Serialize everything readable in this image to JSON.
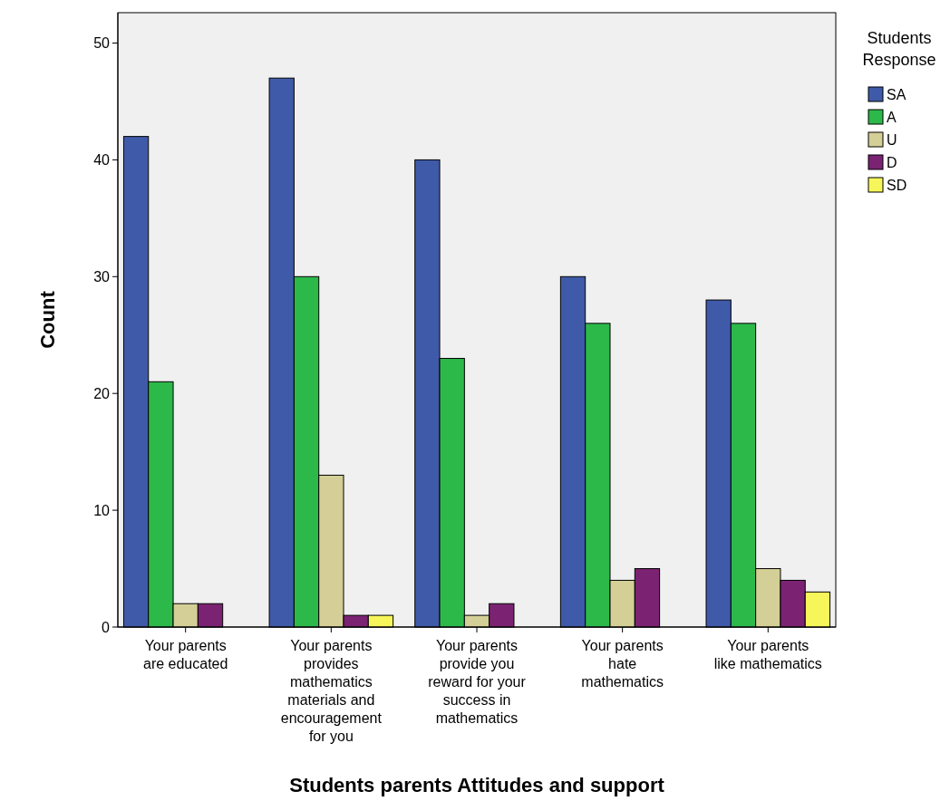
{
  "chart_data": {
    "type": "bar",
    "xlabel": "Students parents Attitudes and support",
    "ylabel": "Count",
    "legend_title": "Students\nResponse",
    "categories": [
      "Your parents\nare educated",
      "Your parents\nprovides\nmathematics\nmaterials and\nencouragement\nfor you",
      "Your parents\nprovide you\nreward for your\nsuccess in\nmathematics",
      "Your parents\nhate\nmathematics",
      "Your parents\nlike mathematics"
    ],
    "series": [
      {
        "name": "SA",
        "color": "#3f5aa8",
        "values": [
          42,
          47,
          40,
          30,
          28
        ]
      },
      {
        "name": "A",
        "color": "#2db84a",
        "values": [
          21,
          30,
          23,
          26,
          26
        ]
      },
      {
        "name": "U",
        "color": "#d4cf96",
        "values": [
          2,
          13,
          1,
          4,
          5
        ]
      },
      {
        "name": "D",
        "color": "#7b2372",
        "values": [
          2,
          1,
          2,
          5,
          4
        ]
      },
      {
        "name": "SD",
        "color": "#f6f65a",
        "values": [
          null,
          1,
          null,
          null,
          3
        ]
      }
    ],
    "ylim": [
      0,
      52.6
    ],
    "yticks": [
      0,
      10,
      20,
      30,
      40,
      50
    ],
    "grid": false,
    "legend": "top right"
  }
}
